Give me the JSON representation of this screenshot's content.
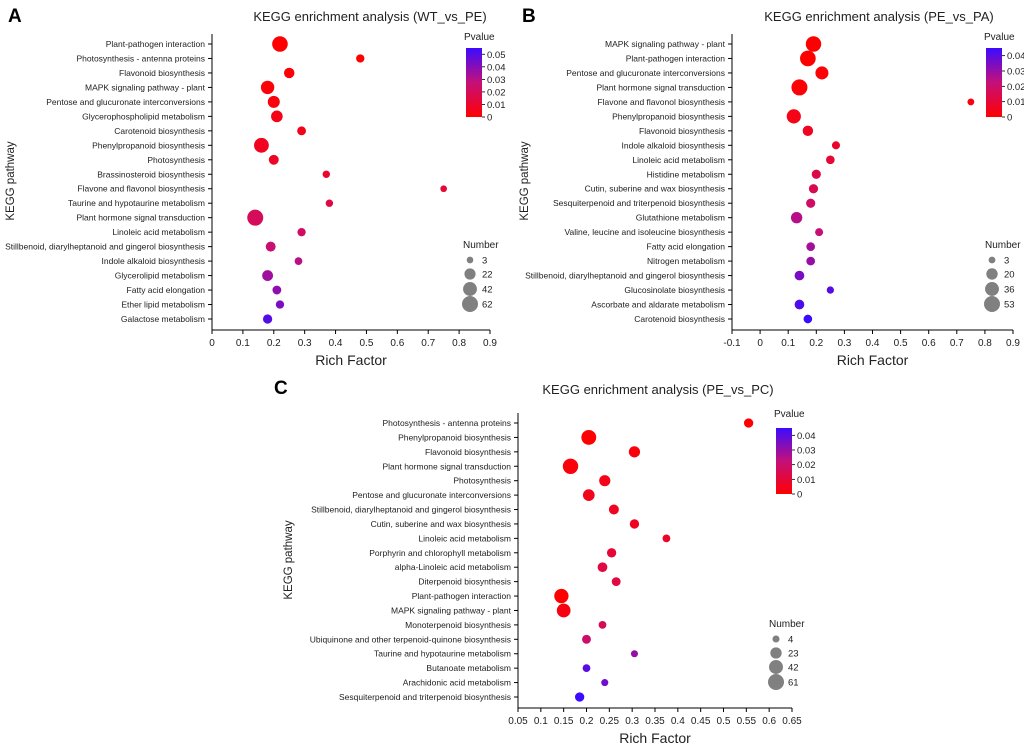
{
  "chart_data": [
    {
      "type": "scatter",
      "panel": "A",
      "title": "KEGG enrichment analysis (WT_vs_PE)",
      "xlabel": "Rich Factor",
      "ylabel": "KEGG pathway",
      "xlim": [
        0,
        0.9
      ],
      "xticks": [
        0,
        0.1,
        0.2,
        0.3,
        0.4,
        0.5,
        0.6,
        0.7,
        0.8,
        0.9
      ],
      "xtick_labels": [
        "0",
        "0.1",
        "0.2",
        "0.3",
        "0.4",
        "0.5",
        "0.6",
        "0.7",
        "0.8",
        "0.9"
      ],
      "color_legend": {
        "title": "Pvalue",
        "ticks": [
          "0.05",
          "0.04",
          "0.03",
          "0.02",
          "0.01",
          "0"
        ],
        "max": 0.055
      },
      "size_legend": {
        "title": "Number",
        "values": [
          3,
          22,
          42,
          62
        ],
        "labels": [
          "3",
          "22",
          "42",
          "62"
        ]
      },
      "categories": [
        "Plant-pathogen interaction",
        "Photosynthesis - antenna proteins",
        "Flavonoid biosynthesis",
        "MAPK signaling pathway - plant",
        "Pentose and glucuronate interconversions",
        "Glycerophospholipid metabolism",
        "Carotenoid biosynthesis",
        "Phenylpropanoid biosynthesis",
        "Photosynthesis",
        "Brassinosteroid biosynthesis",
        "Flavone and flavonol biosynthesis",
        "Taurine and hypotaurine metabolism",
        "Plant hormone signal transduction",
        "Linoleic acid metabolism",
        "Stillbenoid, diarylheptanoid and gingerol biosynthesis",
        "Indole alkaloid biosynthesis",
        "Glycerolipid metabolism",
        "Fatty acid elongation",
        "Ether lipid metabolism",
        "Galactose metabolism"
      ],
      "rich_factor": [
        0.22,
        0.48,
        0.25,
        0.18,
        0.2,
        0.21,
        0.29,
        0.16,
        0.2,
        0.37,
        0.75,
        0.38,
        0.14,
        0.29,
        0.19,
        0.28,
        0.18,
        0.21,
        0.22,
        0.18
      ],
      "number": [
        58,
        8,
        18,
        38,
        28,
        25,
        10,
        50,
        15,
        5,
        3,
        5,
        62,
        8,
        15,
        6,
        20,
        10,
        8,
        12
      ],
      "pvalue": [
        0.0,
        0.0,
        0.001,
        0.002,
        0.003,
        0.005,
        0.006,
        0.007,
        0.008,
        0.01,
        0.012,
        0.015,
        0.02,
        0.022,
        0.025,
        0.03,
        0.035,
        0.038,
        0.042,
        0.05
      ]
    },
    {
      "type": "scatter",
      "panel": "B",
      "title": "KEGG enrichment analysis (PE_vs_PA)",
      "xlabel": "Rich Factor",
      "ylabel": "KEGG pathway",
      "xlim": [
        -0.1,
        0.9
      ],
      "xticks": [
        -0.1,
        0,
        0.1,
        0.2,
        0.3,
        0.4,
        0.5,
        0.6,
        0.7,
        0.8,
        0.9
      ],
      "xtick_labels": [
        "-0.1",
        "0",
        "0.1",
        "0.2",
        "0.3",
        "0.4",
        "0.5",
        "0.6",
        "0.7",
        "0.8",
        "0.9"
      ],
      "color_legend": {
        "title": "Pvalue",
        "ticks": [
          "0.04",
          "0.03",
          "0.02",
          "0.01",
          "0"
        ],
        "max": 0.045
      },
      "size_legend": {
        "title": "Number",
        "values": [
          3,
          20,
          36,
          53
        ],
        "labels": [
          "3",
          "20",
          "36",
          "53"
        ]
      },
      "categories": [
        "MAPK signaling pathway - plant",
        "Plant-pathogen interaction",
        "Pentose and glucuronate interconversions",
        "Plant hormone signal transduction",
        "Flavone and flavonol biosynthesis",
        "Phenylpropanoid biosynthesis",
        "Flavonoid biosynthesis",
        "Indole alkaloid biosynthesis",
        "Linoleic acid metabolism",
        "Histidine metabolism",
        "Cutin, suberine and wax biosynthesis",
        "Sesquiterpenoid and triterpenoid biosynthesis",
        "Glutathione metabolism",
        "Valine, leucine and isoleucine biosynthesis",
        "Fatty acid elongation",
        "Nitrogen metabolism",
        "Stillbenoid, diarylheptanoid and gingerol biosynthesis",
        "Glucosinolate biosynthesis",
        "Ascorbate and aldarate metabolism",
        "Carotenoid biosynthesis"
      ],
      "rich_factor": [
        0.19,
        0.17,
        0.22,
        0.14,
        0.75,
        0.12,
        0.17,
        0.27,
        0.25,
        0.2,
        0.19,
        0.18,
        0.13,
        0.21,
        0.18,
        0.18,
        0.14,
        0.25,
        0.14,
        0.17
      ],
      "number": [
        48,
        50,
        30,
        53,
        3,
        38,
        15,
        6,
        8,
        10,
        10,
        10,
        20,
        6,
        8,
        8,
        12,
        4,
        12,
        8
      ],
      "pvalue": [
        0.0,
        0.0,
        0.001,
        0.001,
        0.003,
        0.004,
        0.006,
        0.008,
        0.01,
        0.013,
        0.015,
        0.018,
        0.025,
        0.022,
        0.028,
        0.03,
        0.035,
        0.04,
        0.042,
        0.045
      ]
    },
    {
      "type": "scatter",
      "panel": "C",
      "title": "KEGG enrichment analysis (PE_vs_PC)",
      "xlabel": "Rich Factor",
      "ylabel": "KEGG pathway",
      "xlim": [
        0.05,
        0.65
      ],
      "xticks": [
        0.05,
        0.1,
        0.15,
        0.2,
        0.25,
        0.3,
        0.35,
        0.4,
        0.45,
        0.5,
        0.55,
        0.6,
        0.65
      ],
      "xtick_labels": [
        "0.05",
        "0.1",
        "0.15",
        "0.2",
        "0.25",
        "0.3",
        "0.35",
        "0.4",
        "0.45",
        "0.5",
        "0.55",
        "0.6",
        "0.65"
      ],
      "color_legend": {
        "title": "Pvalue",
        "ticks": [
          "0.04",
          "0.03",
          "0.02",
          "0.01",
          "0"
        ],
        "max": 0.045
      },
      "size_legend": {
        "title": "Number",
        "values": [
          4,
          23,
          42,
          61
        ],
        "labels": [
          "4",
          "23",
          "42",
          "61"
        ]
      },
      "categories": [
        "Photosynthesis - antenna proteins",
        "Phenylpropanoid biosynthesis",
        "Flavonoid biosynthesis",
        "Plant hormone signal transduction",
        "Photosynthesis",
        "Pentose and glucuronate interconversions",
        "Stillbenoid, diarylheptanoid and gingerol biosynthesis",
        "Cutin, suberine and wax biosynthesis",
        "Linoleic acid metabolism",
        "Porphyrin and chlorophyll metabolism",
        "alpha-Linoleic acid metabolism",
        "Diterpenoid biosynthesis",
        "Plant-pathogen interaction",
        "MAPK signaling pathway - plant",
        "Monoterpenoid biosynthesis",
        "Ubiquinone and other terpenoid-quinone biosynthesis",
        "Taurine and hypotaurine metabolism",
        "Butanoate metabolism",
        "Arachidonic acid metabolism",
        "Sesquiterpenoid and triterpenoid biosynthesis"
      ],
      "rich_factor": [
        0.555,
        0.205,
        0.305,
        0.165,
        0.24,
        0.205,
        0.26,
        0.305,
        0.375,
        0.255,
        0.235,
        0.265,
        0.145,
        0.15,
        0.235,
        0.2,
        0.305,
        0.2,
        0.24,
        0.185
      ],
      "number": [
        12,
        50,
        22,
        55,
        22,
        25,
        15,
        12,
        6,
        12,
        14,
        10,
        45,
        40,
        6,
        10,
        4,
        6,
        4,
        12
      ],
      "pvalue": [
        0.0,
        0.0,
        0.002,
        0.002,
        0.004,
        0.005,
        0.006,
        0.006,
        0.008,
        0.01,
        0.012,
        0.012,
        0.0,
        0.003,
        0.016,
        0.02,
        0.03,
        0.04,
        0.036,
        0.045
      ]
    }
  ]
}
